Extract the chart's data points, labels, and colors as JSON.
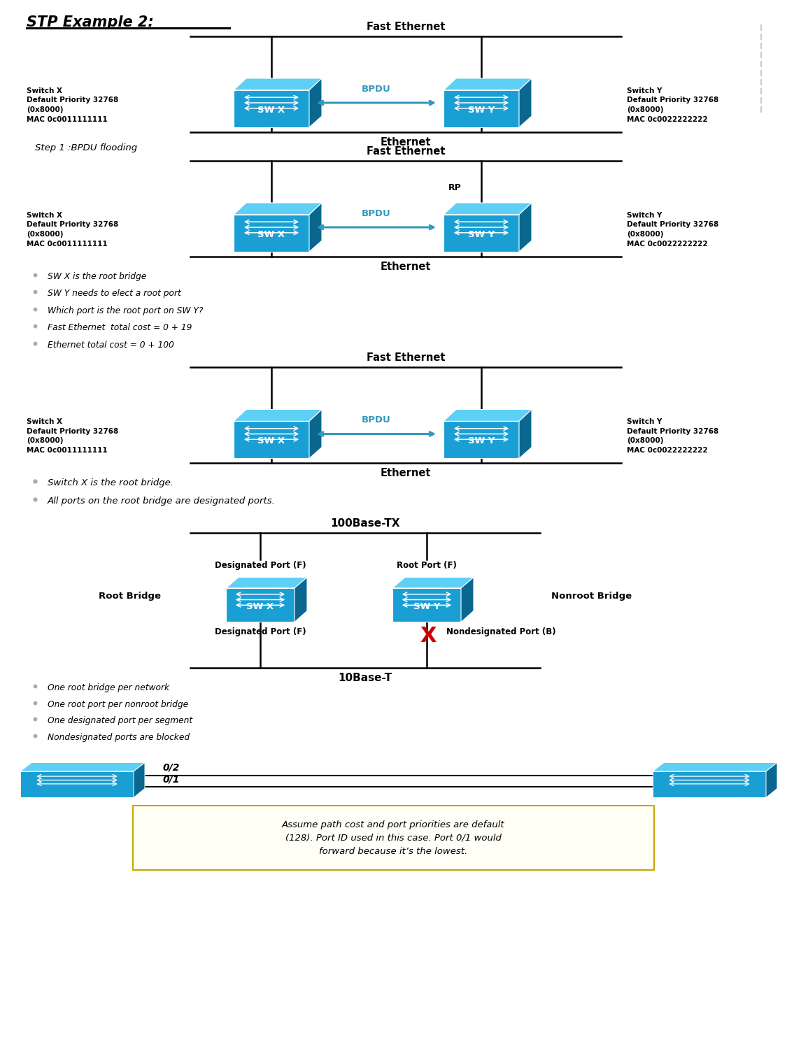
{
  "title": "STP Example 2:",
  "bg_color": "#ffffff",
  "bpdu_color": "#3399bb",
  "bullet_color": "#aaaaaa",
  "s1_fast_eth": "Fast Ethernet",
  "s1_ethernet": "Ethernet",
  "s1_swx_info": "Switch X\nDefault Priority 32768\n(0x8000)\nMAC 0c0011111111",
  "s1_swy_info": "Switch Y\nDefault Priority 32768\n(0x8000)\nMAC 0c0022222222",
  "s1_bpdu": "BPDU",
  "step1": "Step 1 :BPDU flooding",
  "s2_fast_eth": "Fast Ethernet",
  "s2_ethernet": "Ethernet",
  "s2_swx_info": "Switch X\nDefault Priority 32768\n(0x8000)\nMAC 0c0011111111",
  "s2_swy_info": "Switch Y\nDefault Priority 32768\n(0x8000)\nMAC 0c0022222222",
  "s2_bpdu": "BPDU",
  "s2_rp": "RP",
  "bullets1": [
    "SW X is the root bridge",
    "SW Y needs to elect a root port",
    "Which port is the root port on SW Y?",
    "Fast Ethernet  total cost = 0 + 19",
    "Ethernet total cost = 0 + 100"
  ],
  "s3_fast_eth": "Fast Ethernet",
  "s3_ethernet": "Ethernet",
  "s3_swx_info": "Switch X\nDefault Priority 32768\n(0x8000)\nMAC 0c0011111111",
  "s3_swy_info": "Switch Y\nDefault Priority 32768\n(0x8000)\nMAC 0c0022222222",
  "s3_bpdu": "BPDU",
  "bullets2": [
    "Switch X is the root bridge.",
    "All ports on the root bridge are designated ports."
  ],
  "s4_100base": "100Base-TX",
  "s4_10base": "10Base-T",
  "s4_root_bridge": "Root Bridge",
  "s4_nonroot": "Nonroot Bridge",
  "s4_desig1": "Designated Port (F)",
  "s4_root_port": "Root Port (F)",
  "s4_desig2": "Designated Port (F)",
  "s4_nondesig": "Nondesignated Port (B)",
  "bullets3": [
    "One root bridge per network",
    "One root port per nonroot bridge",
    "One designated port per segment",
    "Nondesignated ports are blocked"
  ],
  "port02": "0/2",
  "port01": "0/1",
  "note_text": "Assume path cost and port priorities are default\n(128). Port ID used in this case. Port 0/1 would\nforward because it’s the lowest."
}
